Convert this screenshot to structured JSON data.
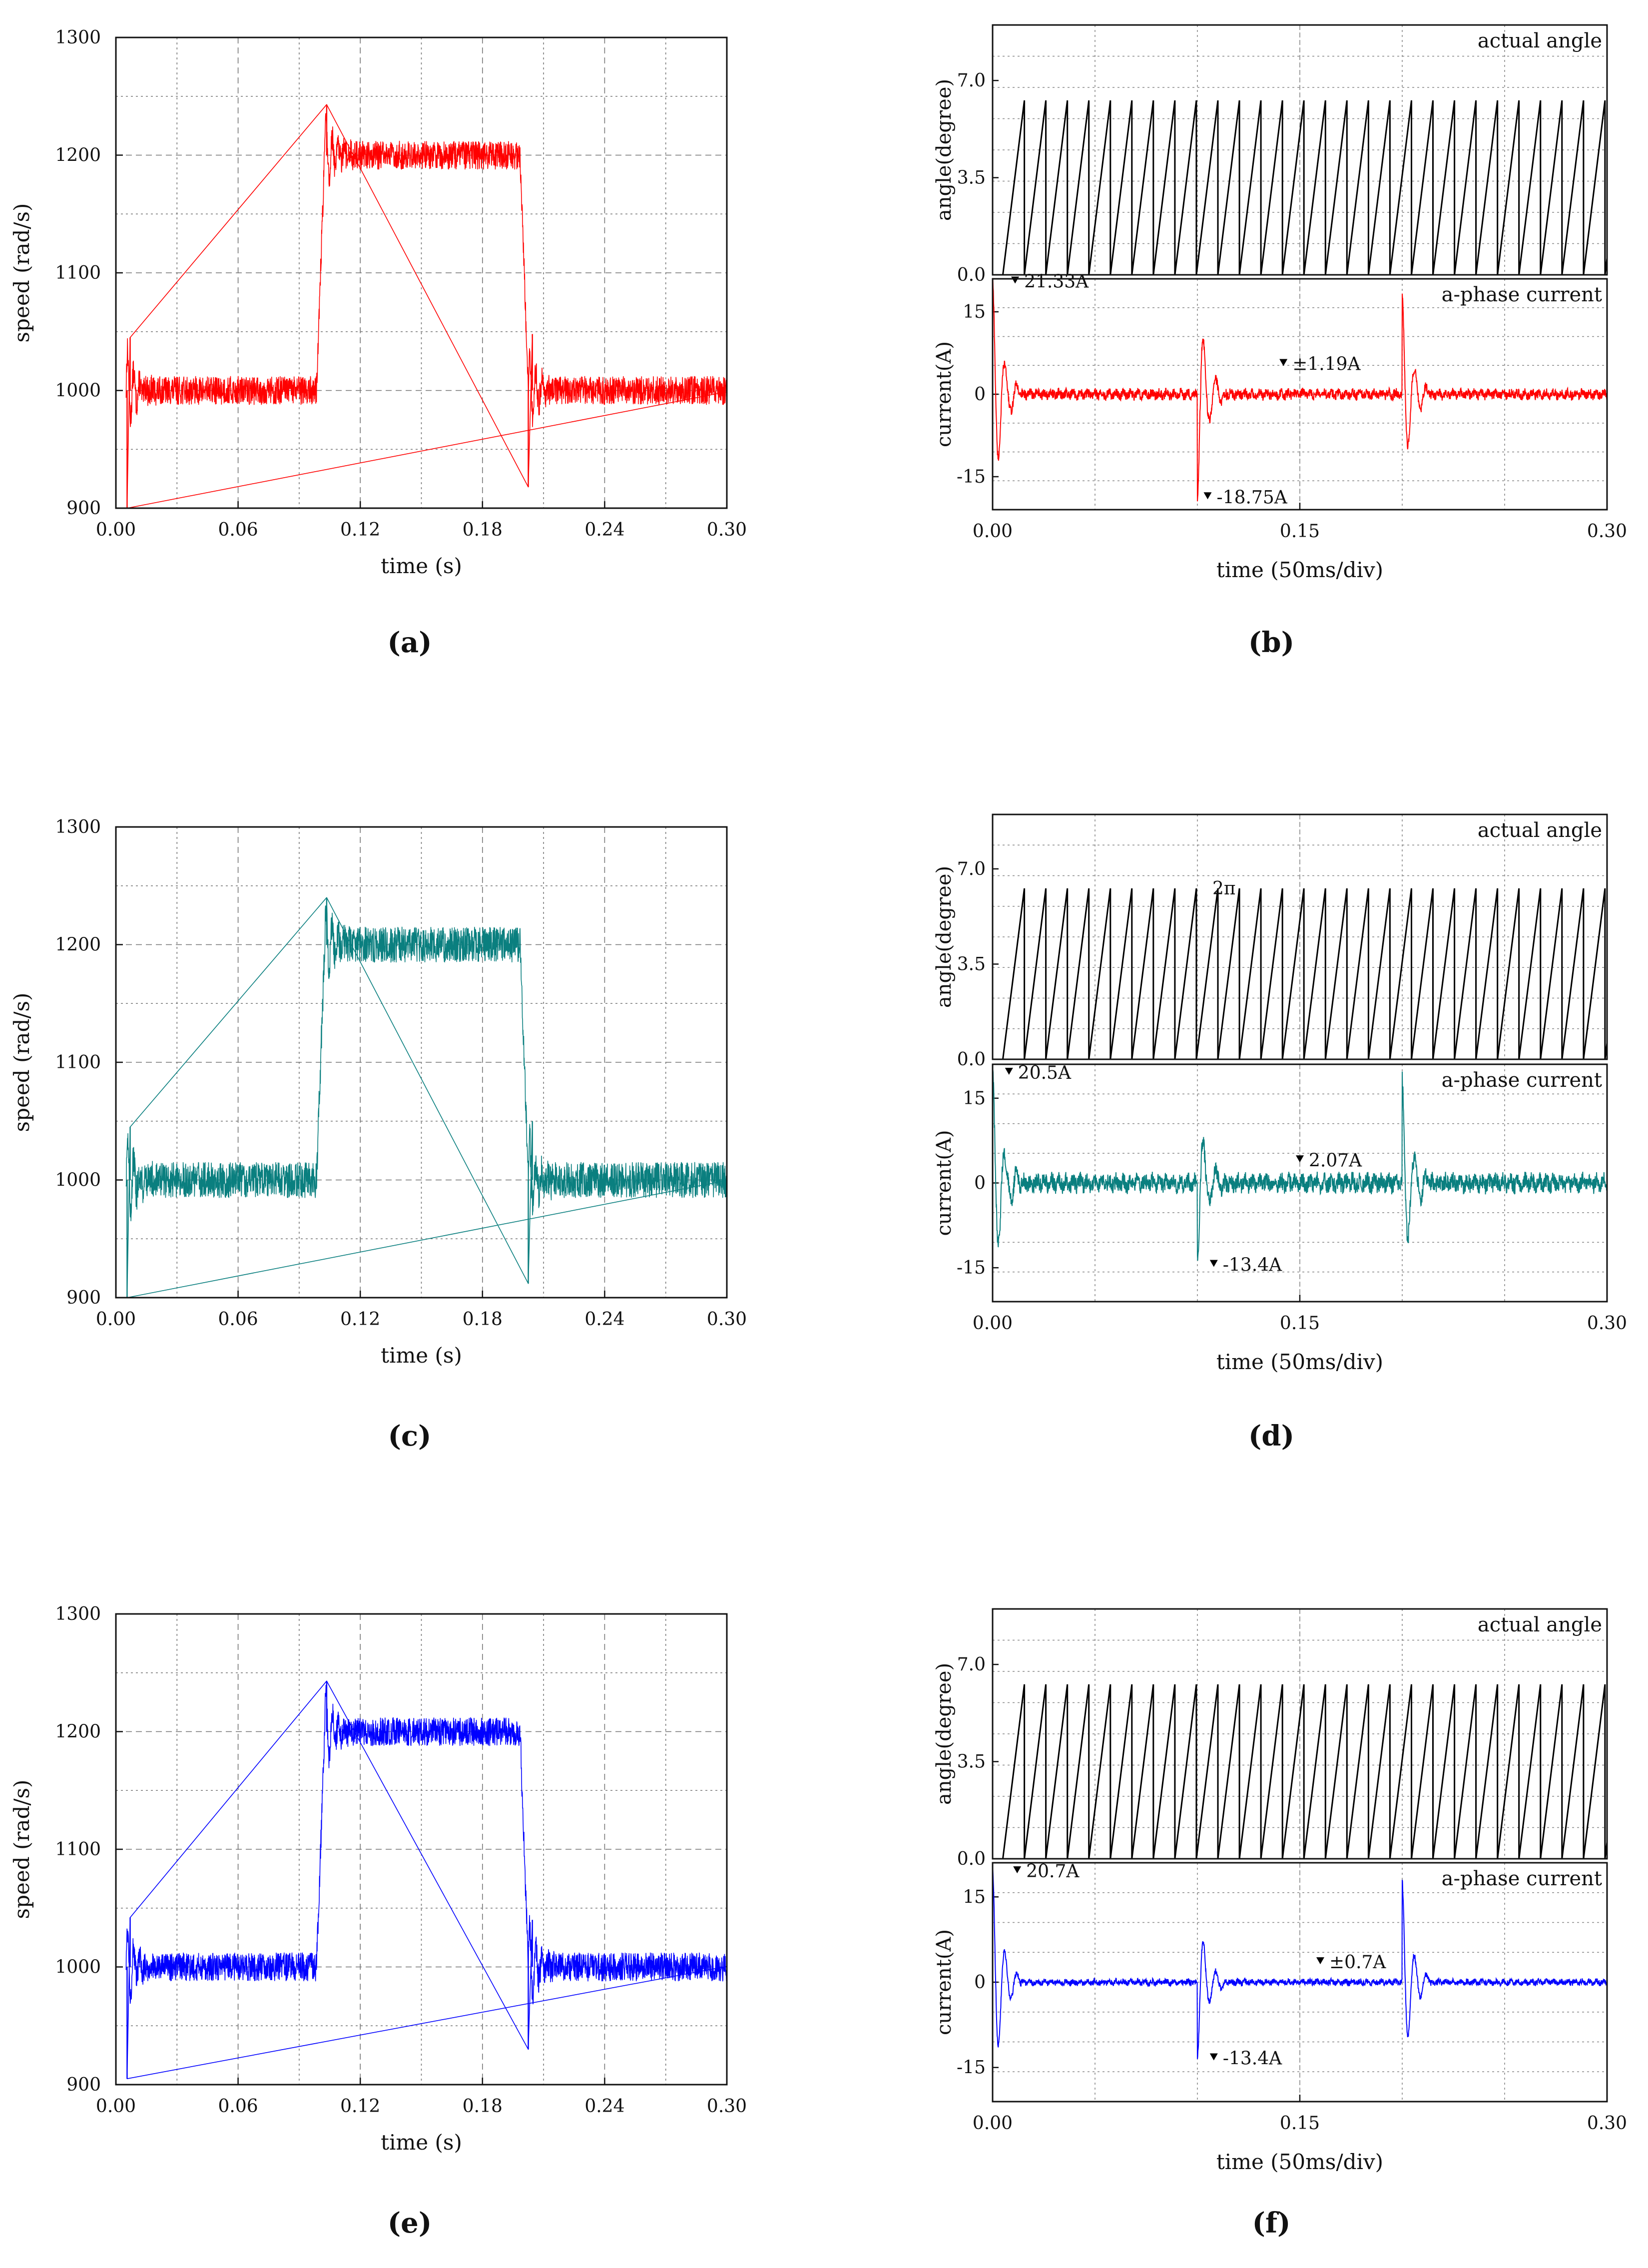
{
  "figure": {
    "panel_labels": [
      "(a)",
      "(b)",
      "(c)",
      "(d)",
      "(e)",
      "(f)"
    ]
  },
  "colors": {
    "a": "#ff0000",
    "c": "#0a7f7f",
    "e": "#0000ff",
    "b": "#ff0000",
    "d": "#0a7f7f",
    "f": "#0000ff",
    "angle": "#000000"
  },
  "chart_data": [
    {
      "id": "a",
      "type": "line",
      "panel_label": "(a)",
      "title": "",
      "xlabel": "time (s)",
      "ylabel": "speed (rad/s)",
      "xlim": [
        0,
        0.3
      ],
      "ylim": [
        900,
        1300
      ],
      "xticks": [
        "0.00",
        "0.06",
        "0.12",
        "0.18",
        "0.24",
        "0.30"
      ],
      "yticks": [
        "900",
        "1000",
        "1100",
        "1200",
        "1300"
      ],
      "grid": true,
      "series": [
        {
          "name": "speed",
          "segments": [
            {
              "t0": 0.005,
              "t1": 0.1,
              "level": 1000
            },
            {
              "t0": 0.1,
              "t1": 0.2,
              "level": 1200
            },
            {
              "t0": 0.2,
              "t1": 0.3,
              "level": 1000
            }
          ],
          "ripple": 12,
          "peaks": [
            {
              "t": 0.0055,
              "value": 900
            },
            {
              "t": 0.007,
              "value": 1045
            },
            {
              "t": 0.1035,
              "value": 1243
            },
            {
              "t": 0.2025,
              "value": 918
            },
            {
              "t": 0.2045,
              "value": 1048
            }
          ]
        }
      ]
    },
    {
      "id": "b",
      "type": "line",
      "panel_label": "(b)",
      "xlabel": "time (50ms/div)",
      "xlim": [
        0,
        0.3
      ],
      "xticks": [
        "0.00",
        "0.15",
        "0.30"
      ],
      "grid": true,
      "subplots": [
        {
          "name": "actual angle",
          "ylabel": "angle(degree)",
          "ylim": [
            0,
            9
          ],
          "yticks": [
            "0.0",
            "3.5",
            "7.0"
          ],
          "series": [
            {
              "name": "actual angle",
              "sawtooth_max": 6.2832,
              "period": 0.0105,
              "start": 0.005
            }
          ]
        },
        {
          "name": "a-phase current",
          "ylabel": "current(A)",
          "ylim": [
            -21,
            21
          ],
          "yticks": [
            "-15",
            "0",
            "15"
          ],
          "series": [
            {
              "name": "a-phase current",
              "ripple": 1.19,
              "transients": [
                {
                  "t": 0.0,
                  "amp": 21.33
                },
                {
                  "t": 0.1,
                  "amp": -18.75
                },
                {
                  "t": 0.2,
                  "amp": 18.0
                }
              ]
            }
          ],
          "annotations": [
            {
              "text": "21.33A",
              "t": 0.011,
              "value": 20.5
            },
            {
              "text": "±1.19A",
              "t": 0.142,
              "value": 5.5
            },
            {
              "text": "-18.75A",
              "t": 0.105,
              "value": -18.75
            }
          ]
        }
      ]
    },
    {
      "id": "c",
      "type": "line",
      "panel_label": "(c)",
      "xlabel": "time (s)",
      "ylabel": "speed (rad/s)",
      "xlim": [
        0,
        0.3
      ],
      "ylim": [
        900,
        1300
      ],
      "xticks": [
        "0.00",
        "0.06",
        "0.12",
        "0.18",
        "0.24",
        "0.30"
      ],
      "yticks": [
        "900",
        "1000",
        "1100",
        "1200",
        "1300"
      ],
      "grid": true,
      "series": [
        {
          "name": "speed",
          "segments": [
            {
              "t0": 0.005,
              "t1": 0.1,
              "level": 1000
            },
            {
              "t0": 0.1,
              "t1": 0.2,
              "level": 1200
            },
            {
              "t0": 0.2,
              "t1": 0.3,
              "level": 1000
            }
          ],
          "ripple": 15,
          "peaks": [
            {
              "t": 0.0055,
              "value": 900
            },
            {
              "t": 0.007,
              "value": 1045
            },
            {
              "t": 0.1035,
              "value": 1240
            },
            {
              "t": 0.2025,
              "value": 912
            },
            {
              "t": 0.2045,
              "value": 1050
            }
          ]
        }
      ]
    },
    {
      "id": "d",
      "type": "line",
      "panel_label": "(d)",
      "xlabel": "time (50ms/div)",
      "xlim": [
        0,
        0.3
      ],
      "xticks": [
        "0.00",
        "0.15",
        "0.30"
      ],
      "grid": true,
      "subplots": [
        {
          "name": "actual angle",
          "ylabel": "angle(degree)",
          "ylim": [
            0,
            9
          ],
          "yticks": [
            "0.0",
            "3.5",
            "7.0"
          ],
          "series": [
            {
              "name": "actual angle",
              "sawtooth_max": 6.2832,
              "period": 0.0105,
              "start": 0.005
            }
          ],
          "annotations": [
            {
              "text": "2π",
              "t": 0.1,
              "value": 6.28
            }
          ]
        },
        {
          "name": "a-phase current",
          "ylabel": "current(A)",
          "ylim": [
            -21,
            21
          ],
          "yticks": [
            "-15",
            "0",
            "15"
          ],
          "series": [
            {
              "name": "a-phase current",
              "ripple": 2.07,
              "transients": [
                {
                  "t": 0.0,
                  "amp": 20.5
                },
                {
                  "t": 0.1,
                  "amp": -13.4
                },
                {
                  "t": 0.2,
                  "amp": 18.0
                }
              ]
            }
          ],
          "annotations": [
            {
              "text": "20.5A",
              "t": 0.008,
              "value": 19.5
            },
            {
              "text": "2.07A",
              "t": 0.15,
              "value": 4.0
            },
            {
              "text": "-13.4A",
              "t": 0.108,
              "value": -14.5
            }
          ]
        }
      ]
    },
    {
      "id": "e",
      "type": "line",
      "panel_label": "(e)",
      "xlabel": "time (s)",
      "ylabel": "speed (rad/s)",
      "xlim": [
        0,
        0.3
      ],
      "ylim": [
        900,
        1300
      ],
      "xticks": [
        "0.00",
        "0.06",
        "0.12",
        "0.18",
        "0.24",
        "0.30"
      ],
      "yticks": [
        "900",
        "1000",
        "1100",
        "1200",
        "1300"
      ],
      "grid": true,
      "series": [
        {
          "name": "speed",
          "segments": [
            {
              "t0": 0.005,
              "t1": 0.1,
              "level": 1000
            },
            {
              "t0": 0.1,
              "t1": 0.2,
              "level": 1200
            },
            {
              "t0": 0.2,
              "t1": 0.3,
              "level": 1000
            }
          ],
          "ripple": 12,
          "peaks": [
            {
              "t": 0.0055,
              "value": 905
            },
            {
              "t": 0.007,
              "value": 1042
            },
            {
              "t": 0.1035,
              "value": 1243
            },
            {
              "t": 0.2025,
              "value": 930
            },
            {
              "t": 0.2045,
              "value": 1040
            }
          ]
        }
      ]
    },
    {
      "id": "f",
      "type": "line",
      "panel_label": "(f)",
      "xlabel": "time (50ms/div)",
      "xlim": [
        0,
        0.3
      ],
      "xticks": [
        "0.00",
        "0.15",
        "0.30"
      ],
      "grid": true,
      "subplots": [
        {
          "name": "actual angle",
          "ylabel": "angle(degree)",
          "ylim": [
            0,
            9
          ],
          "yticks": [
            "0.0",
            "3.5",
            "7.0"
          ],
          "series": [
            {
              "name": "actual angle",
              "sawtooth_max": 6.2832,
              "period": 0.0105,
              "start": 0.005
            }
          ]
        },
        {
          "name": "a-phase current",
          "ylabel": "current(A)",
          "ylim": [
            -21,
            21
          ],
          "yticks": [
            "-15",
            "0",
            "15"
          ],
          "series": [
            {
              "name": "a-phase current",
              "ripple": 0.7,
              "transients": [
                {
                  "t": 0.0,
                  "amp": 20.7
                },
                {
                  "t": 0.1,
                  "amp": -13.4
                },
                {
                  "t": 0.2,
                  "amp": 18.0
                }
              ]
            }
          ],
          "annotations": [
            {
              "text": "20.7A",
              "t": 0.012,
              "value": 19.5
            },
            {
              "text": "±0.7A",
              "t": 0.16,
              "value": 3.5
            },
            {
              "text": "-13.4A",
              "t": 0.108,
              "value": -13.4
            }
          ]
        }
      ]
    }
  ]
}
